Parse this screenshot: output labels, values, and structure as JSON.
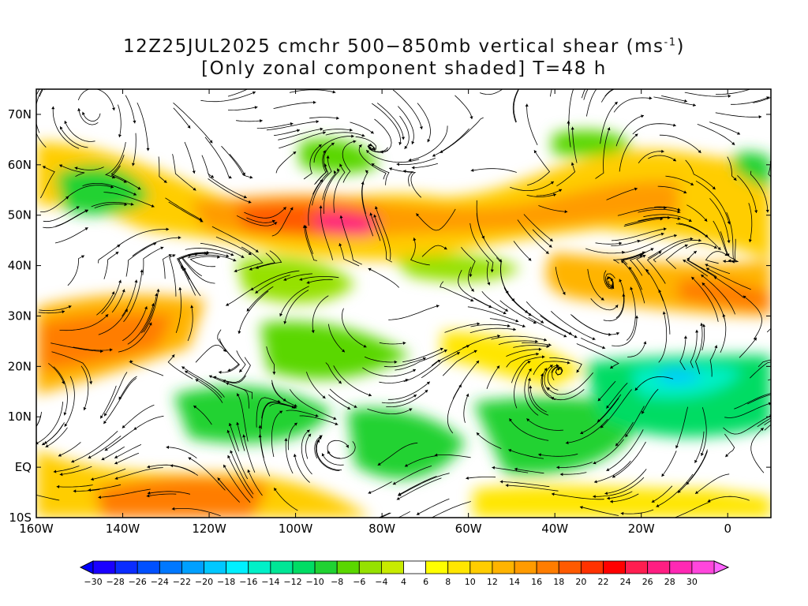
{
  "title": {
    "line1": "12Z25JUL2025 cmchr 500−850mb vertical shear (ms",
    "line1_sup": "-1",
    "line1_end": ")",
    "line2": "[Only zonal component shaded] T=48 h"
  },
  "map": {
    "lat_labels": [
      "70N",
      "60N",
      "50N",
      "40N",
      "30N",
      "20N",
      "10N",
      "EQ",
      "10S"
    ],
    "lon_labels": [
      "160W",
      "140W",
      "120W",
      "100W",
      "80W",
      "60W",
      "40W",
      "20W",
      "0"
    ],
    "extent": {
      "lon": [
        -160,
        10
      ],
      "lat": [
        -10,
        75
      ]
    },
    "overlay": "streamlines of 500-850mb shear vector"
  },
  "colorbar": {
    "labels": [
      "−30",
      "−28",
      "−26",
      "−24",
      "−22",
      "−20",
      "−18",
      "−16",
      "−14",
      "−12",
      "−10",
      "−8",
      "−6",
      "−4",
      "4",
      "6",
      "8",
      "10",
      "12",
      "14",
      "16",
      "18",
      "20",
      "22",
      "24",
      "26",
      "28",
      "30"
    ],
    "colors": [
      "#1a00ff",
      "#0a2cff",
      "#0050ff",
      "#0078ff",
      "#00a0ff",
      "#00c8ff",
      "#00f0ff",
      "#00f0c8",
      "#00e696",
      "#00dc64",
      "#20d232",
      "#5ad700",
      "#96e100",
      "#c8eb00",
      "#ffffff",
      "#ffff00",
      "#ffe600",
      "#ffcd00",
      "#ffb400",
      "#ff9b00",
      "#ff7d00",
      "#ff5a00",
      "#ff3200",
      "#ff0000",
      "#ff1e50",
      "#ff1e82",
      "#ff28b4",
      "#ff46dc"
    ],
    "low_arrow_color": "#0000ff",
    "high_arrow_color": "#ff64ff"
  }
}
